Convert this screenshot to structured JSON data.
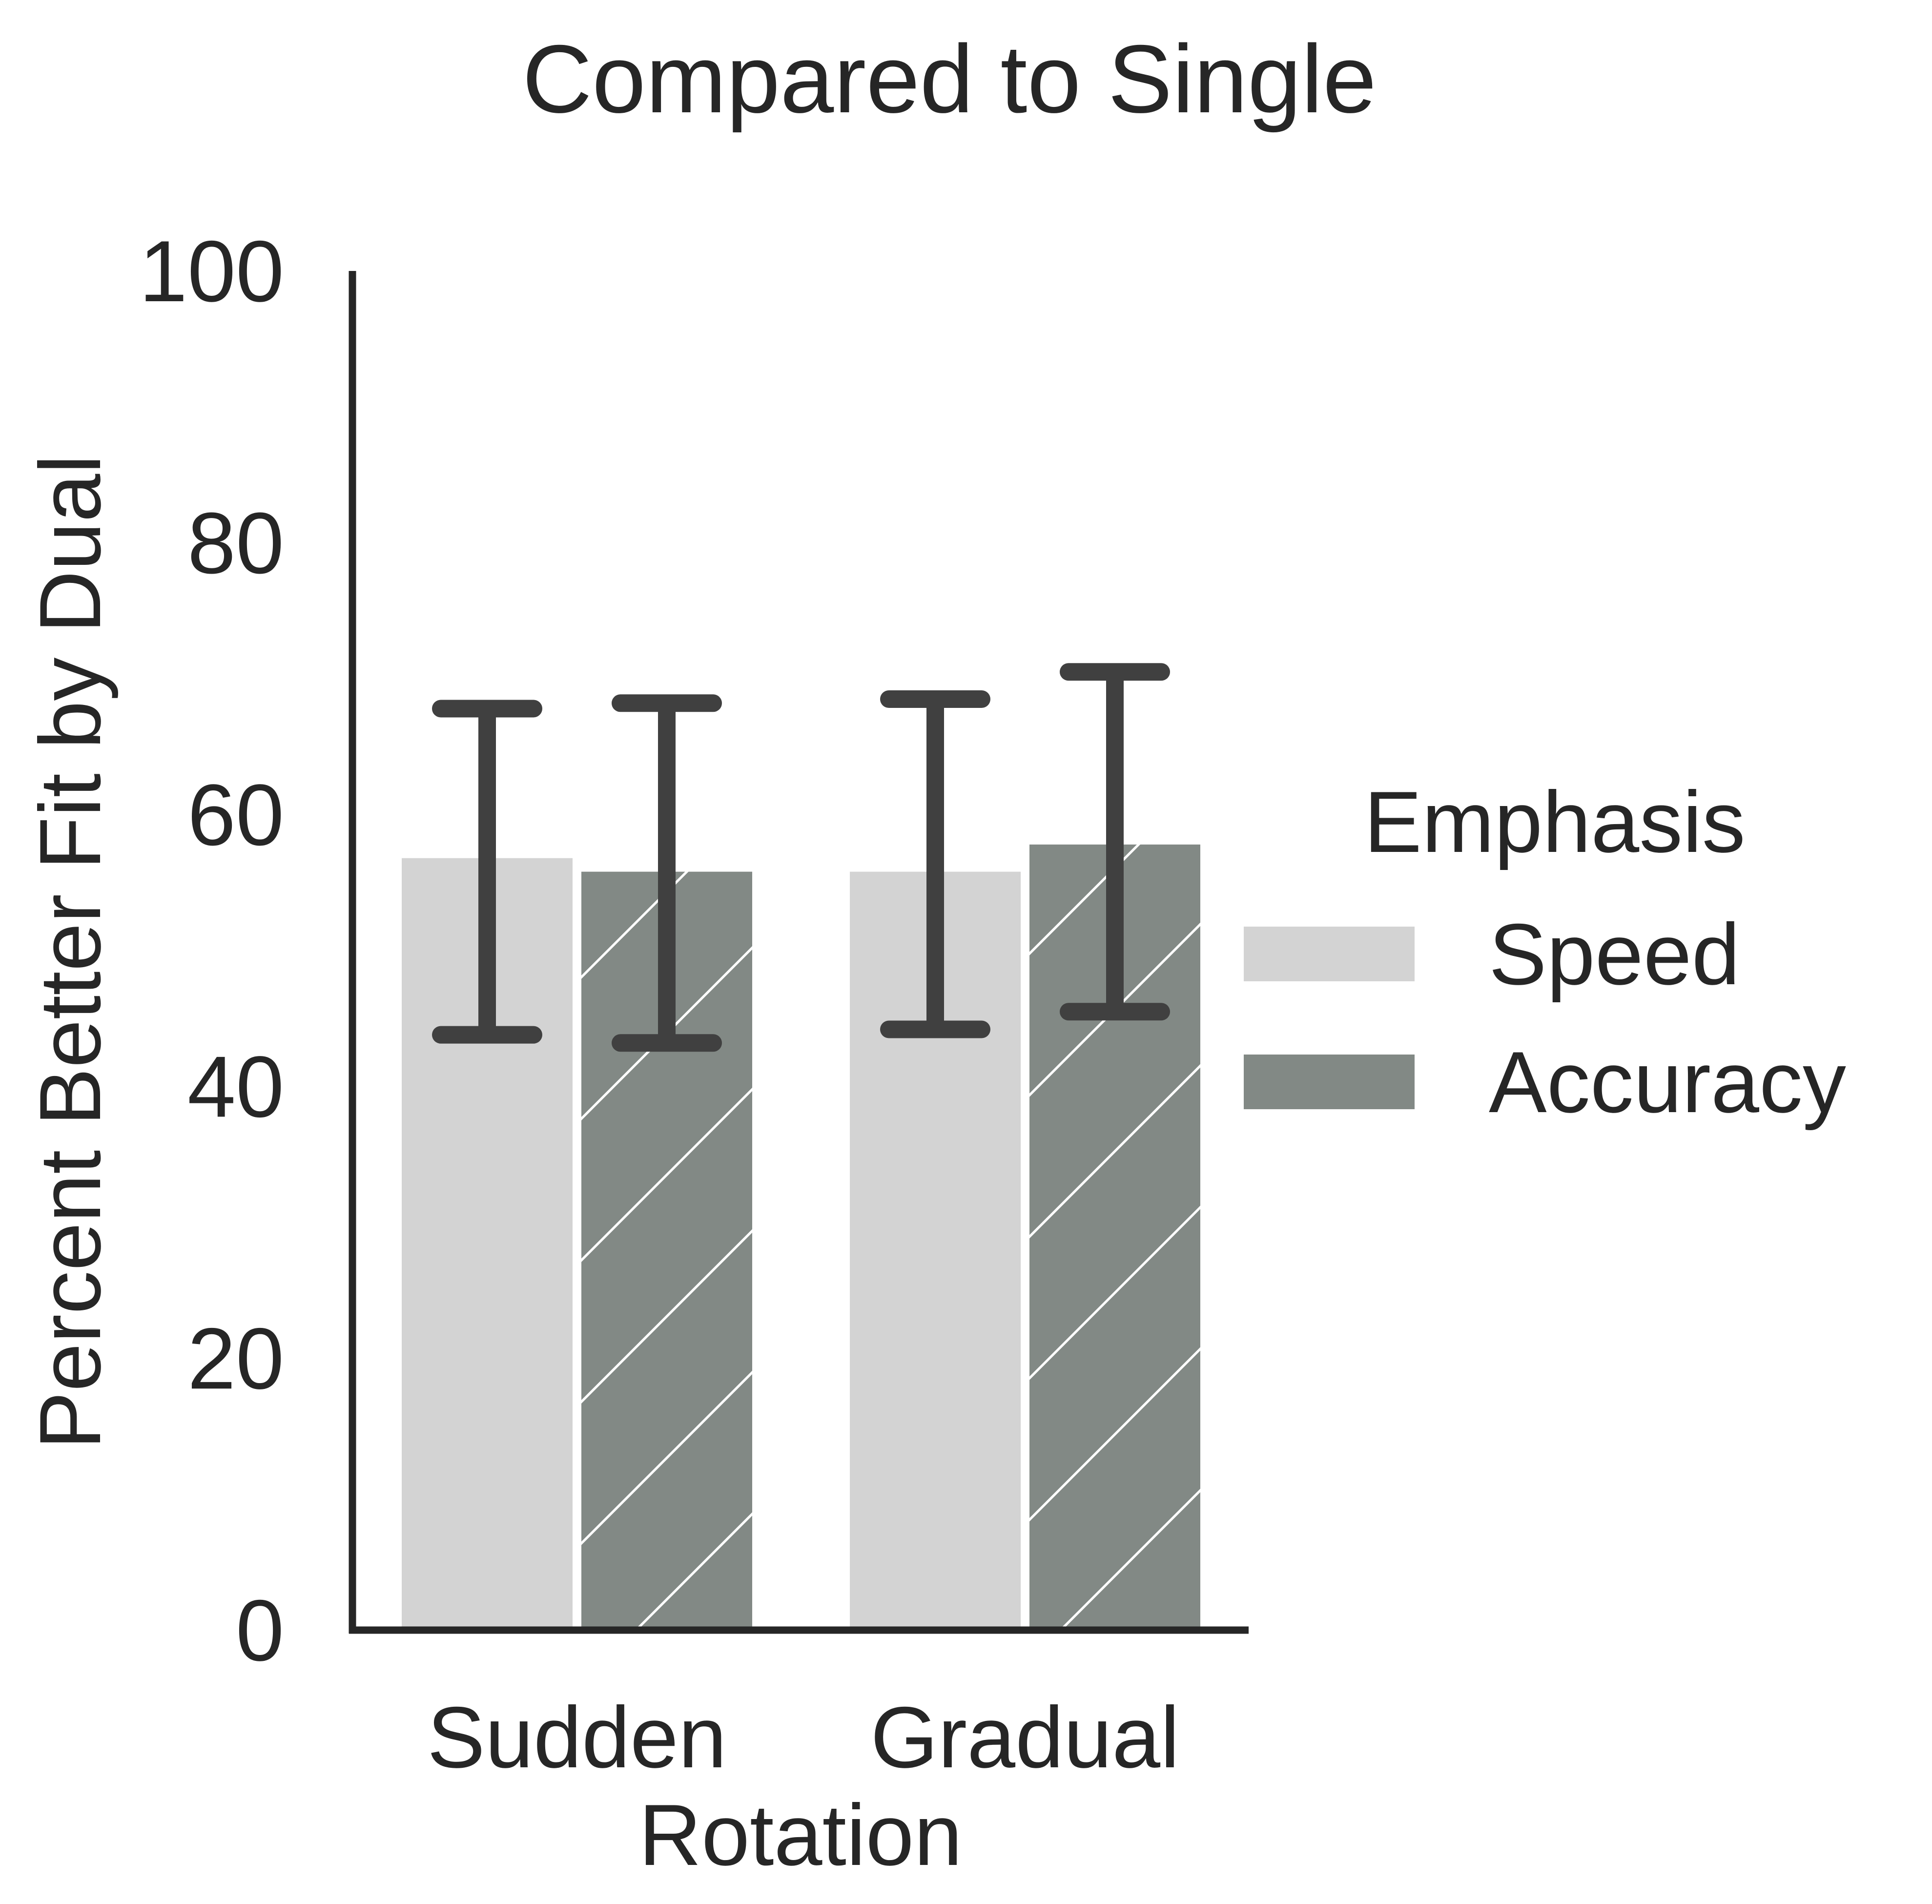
{
  "chart_data": {
    "type": "bar",
    "title": "Compared to Single",
    "xlabel": "Rotation",
    "ylabel": "Percent Better Fit by Dual",
    "categories": [
      "Sudden",
      "Gradual"
    ],
    "ylim": [
      0,
      100
    ],
    "yticks": [
      0,
      20,
      40,
      60,
      80,
      100
    ],
    "ytick_labels": [
      "0",
      "20",
      "40",
      "60",
      "80",
      "100"
    ],
    "grid": false,
    "legend": {
      "title": "Emphasis",
      "placement": "right"
    },
    "series": [
      {
        "name": "Speed",
        "values": [
          56.8,
          55.8
        ],
        "error_low": [
          43.8,
          44.2
        ],
        "error_high": [
          67.8,
          68.5
        ],
        "color": "#d3d3d3",
        "hatch": false
      },
      {
        "name": "Accuracy",
        "values": [
          55.8,
          57.8
        ],
        "error_low": [
          43.2,
          45.5
        ],
        "error_high": [
          68.2,
          70.5
        ],
        "color": "#828985",
        "hatch": true
      }
    ],
    "error_bar_color": "#404040"
  }
}
